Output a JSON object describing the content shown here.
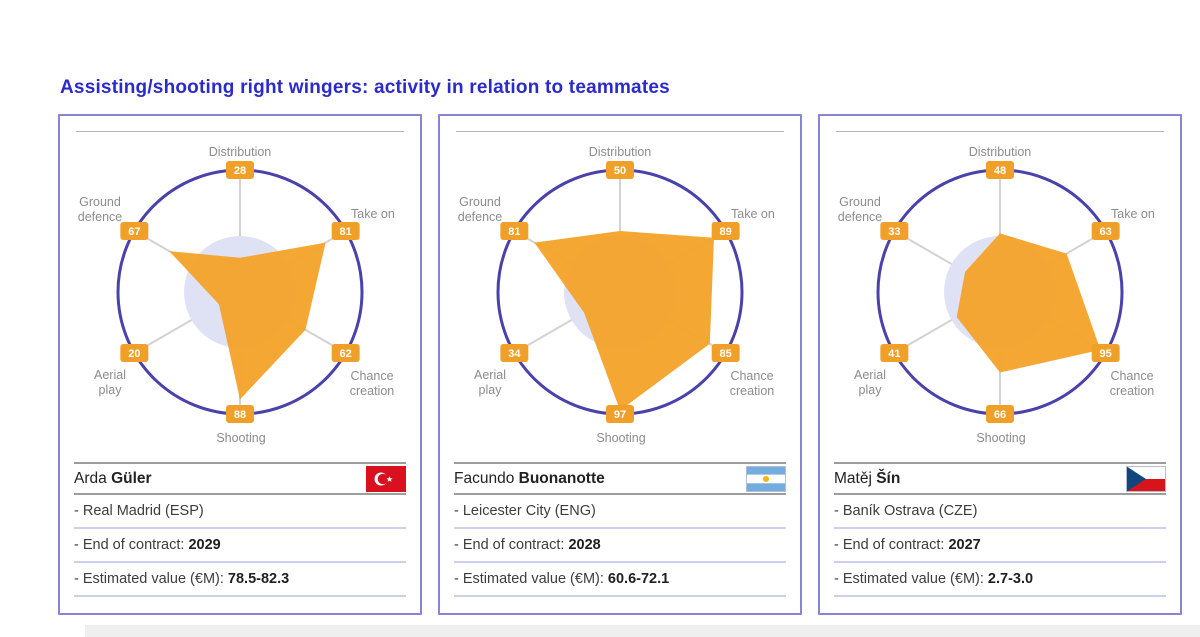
{
  "page": {
    "title": "Assisting/shooting right wingers: activity in relation to teammates"
  },
  "colors": {
    "title_blue": "#2B2BC9",
    "card_border": "#8886D2",
    "radar_orange": "#F4A42C",
    "badge_orange": "#F0A028",
    "radar_ring": "#4A42AB",
    "radar_inner_circle": "#DFE1F5",
    "axis_line_gray": "#D2D2D2",
    "label_gray": "#8C8C8C",
    "badge_text": "#FFFFFF"
  },
  "axes": [
    "Distribution",
    "Take on",
    "Chance creation",
    "Shooting",
    "Aerial play",
    "Ground defence"
  ],
  "chart_data": [
    {
      "type": "radar",
      "player": "Arda Güler",
      "categories": [
        "Distribution",
        "Take on",
        "Chance creation",
        "Shooting",
        "Aerial play",
        "Ground defence"
      ],
      "values": [
        28,
        81,
        62,
        88,
        20,
        67
      ],
      "range": [
        0,
        100
      ]
    },
    {
      "type": "radar",
      "player": "Facundo Buonanotte",
      "categories": [
        "Distribution",
        "Take on",
        "Chance creation",
        "Shooting",
        "Aerial play",
        "Ground defence"
      ],
      "values": [
        50,
        89,
        85,
        97,
        34,
        81
      ],
      "range": [
        0,
        100
      ]
    },
    {
      "type": "radar",
      "player": "Matěj Šín",
      "categories": [
        "Distribution",
        "Take on",
        "Chance creation",
        "Shooting",
        "Aerial play",
        "Ground defence"
      ],
      "values": [
        48,
        63,
        95,
        66,
        41,
        33
      ],
      "range": [
        0,
        100
      ]
    }
  ],
  "players": [
    {
      "first_name": "Arda",
      "last_name": "Güler",
      "flag": "turkey-flag",
      "club": "- Real Madrid (ESP)",
      "contract_label": "- End of contract: ",
      "contract_year": "2029",
      "value_label": "- Estimated value (€M): ",
      "value_range": "78.5-82.3"
    },
    {
      "first_name": "Facundo",
      "last_name": "Buonanotte",
      "flag": "argentina-flag",
      "club": "- Leicester City (ENG)",
      "contract_label": "- End of contract: ",
      "contract_year": "2028",
      "value_label": "- Estimated value (€M): ",
      "value_range": "60.6-72.1"
    },
    {
      "first_name": "Matěj",
      "last_name": "Šín",
      "flag": "czech-republic-flag",
      "club": "- Baník Ostrava (CZE)",
      "contract_label": "- End of contract: ",
      "contract_year": "2027",
      "value_label": "- Estimated value (€M): ",
      "value_range": "2.7-3.0"
    }
  ]
}
